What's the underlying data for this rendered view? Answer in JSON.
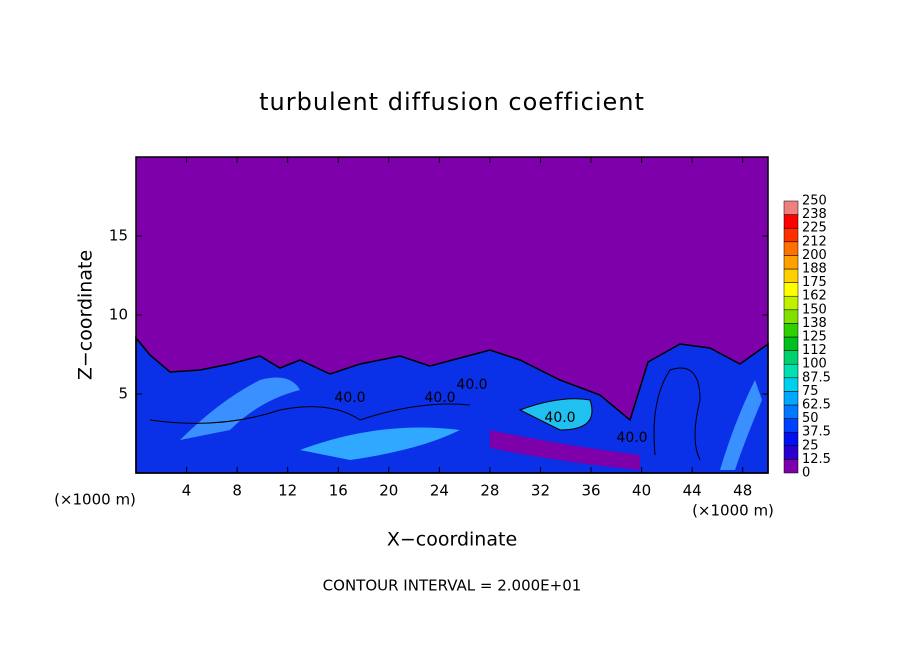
{
  "chart_data": {
    "type": "contour",
    "title": "turbulent diffusion coefficient",
    "x_label": "X−coordinate",
    "y_label": "Z−coordinate",
    "x_unit_left": "(×1000 m)",
    "x_unit_right": "(×1000 m)",
    "footer": "CONTOUR INTERVAL = 2.000E+01",
    "xlim": [
      0,
      50
    ],
    "xticks": [
      4,
      8,
      12,
      16,
      20,
      24,
      28,
      32,
      36,
      40,
      44,
      48
    ],
    "ylim": [
      0,
      20
    ],
    "yticks": [
      5,
      10,
      15
    ],
    "contour_labels": [
      "40.0",
      "40.0",
      "40.0",
      "40.0",
      "40.0"
    ],
    "colorbar": {
      "levels": [
        0,
        12.5,
        25,
        37.5,
        50,
        62.5,
        75,
        87.5,
        100,
        112,
        125,
        138,
        150,
        162,
        175,
        188,
        200,
        212,
        225,
        238,
        250
      ],
      "colors": [
        "#7d00aa",
        "#2a00d0",
        "#0010f0",
        "#0040ff",
        "#0078ff",
        "#00a8ff",
        "#00d0f0",
        "#00e0b0",
        "#00d070",
        "#00c020",
        "#30d000",
        "#80e000",
        "#c0f000",
        "#ffff00",
        "#ffd000",
        "#ffa000",
        "#ff7000",
        "#ff3000",
        "#ff0000",
        "#f08080"
      ]
    }
  }
}
